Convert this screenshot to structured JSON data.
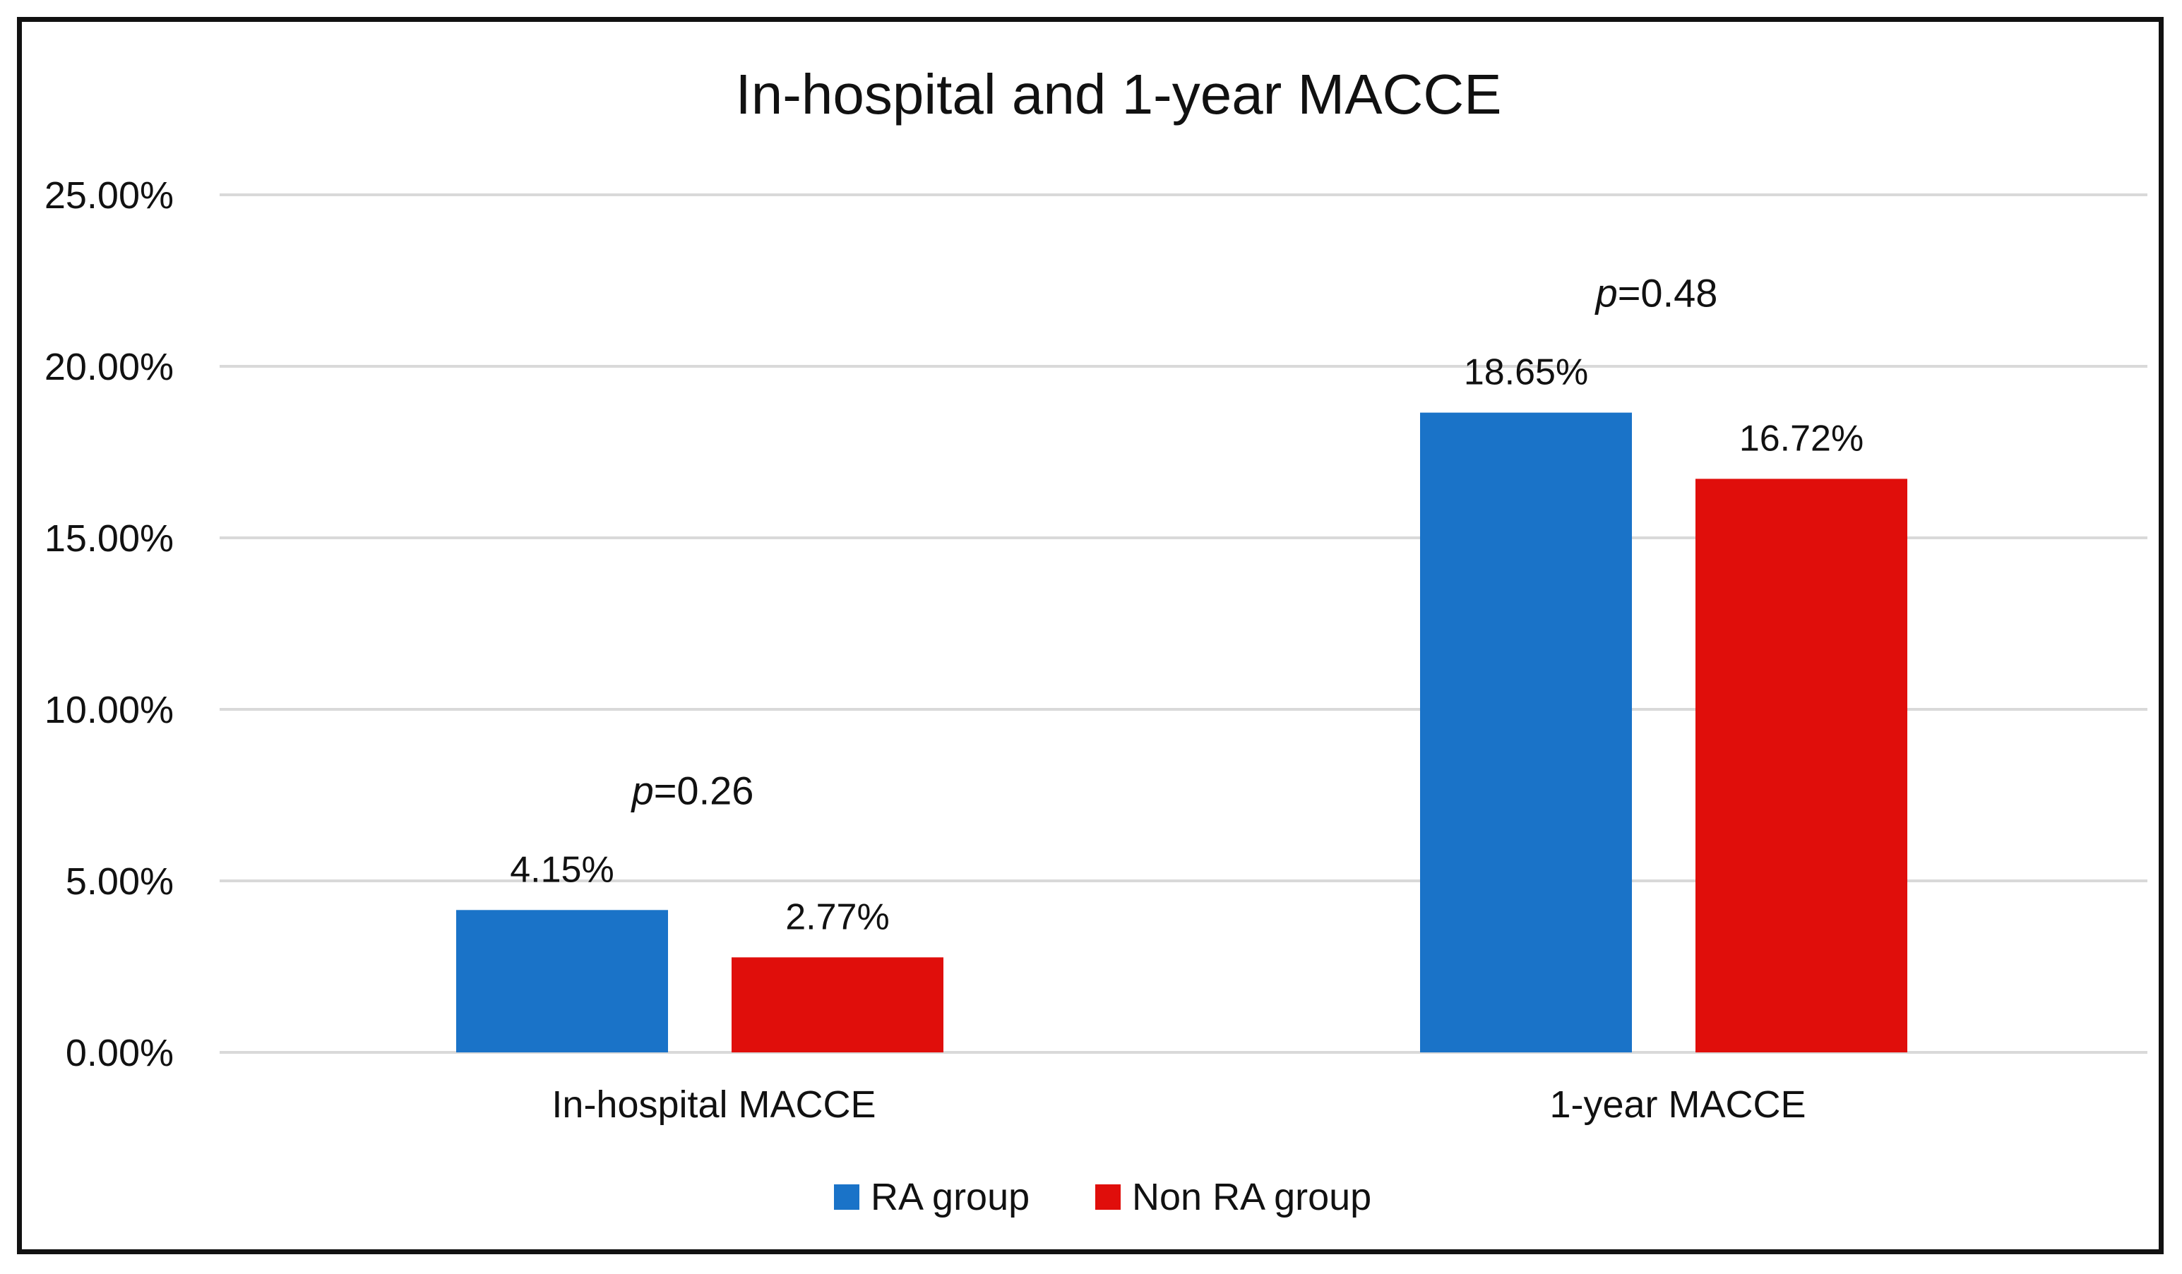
{
  "chart_data": {
    "type": "bar",
    "title": "In-hospital and 1-year MACCE",
    "xlabel": "",
    "ylabel": "",
    "ylim": [
      0,
      25
    ],
    "y_ticks": [
      "0.00%",
      "5.00%",
      "10.00%",
      "15.00%",
      "20.00%",
      "25.00%"
    ],
    "grid": true,
    "legend_position": "bottom",
    "categories": [
      "In-hospital MACCE",
      "1-year MACCE"
    ],
    "series": [
      {
        "name": "RA group",
        "color": "#1a73c8",
        "values": [
          4.15,
          18.65
        ],
        "labels": [
          "4.15%",
          "18.65%"
        ]
      },
      {
        "name": "Non RA group",
        "color": "#e00e0b",
        "values": [
          2.77,
          16.72
        ],
        "labels": [
          "2.77%",
          "16.72%"
        ]
      }
    ],
    "annotations": [
      {
        "category": "In-hospital MACCE",
        "p_symbol": "p",
        "p_value": "=0.26"
      },
      {
        "category": "1-year MACCE",
        "p_symbol": "p",
        "p_value": "=0.48"
      }
    ]
  }
}
